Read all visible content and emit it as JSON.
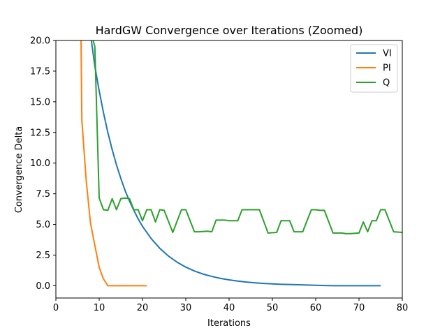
{
  "chart_data": {
    "type": "line",
    "title": "HardGW Convergence over Iterations (Zoomed)",
    "xlabel": "Iterations",
    "ylabel": "Convergence Delta",
    "xlim": [
      0,
      80
    ],
    "ylim": [
      -1,
      20
    ],
    "xticks": [
      0,
      10,
      20,
      30,
      40,
      50,
      60,
      70,
      80
    ],
    "yticks": [
      0.0,
      2.5,
      5.0,
      7.5,
      10.0,
      12.5,
      15.0,
      17.5,
      20.0
    ],
    "xtick_labels": [
      "0",
      "10",
      "20",
      "30",
      "40",
      "50",
      "60",
      "70",
      "80"
    ],
    "ytick_labels": [
      "0.0",
      "2.5",
      "5.0",
      "7.5",
      "10.0",
      "12.5",
      "15.0",
      "17.5",
      "20.0"
    ],
    "grid": false,
    "legend": "top-right",
    "series": [
      {
        "name": "VI",
        "color": "#1f77b4",
        "x": [
          8,
          9,
          10,
          11,
          12,
          13,
          14,
          15,
          16,
          17,
          18,
          19,
          20,
          22,
          24,
          26,
          28,
          30,
          32,
          34,
          36,
          38,
          40,
          42,
          44,
          46,
          48,
          50,
          52,
          54,
          56,
          58,
          60,
          62,
          64,
          66,
          68,
          70,
          72,
          75
        ],
        "y": [
          20.5,
          17.9,
          15.9,
          14.1,
          12.5,
          11.1,
          9.85,
          8.75,
          7.75,
          6.9,
          6.15,
          5.45,
          4.85,
          3.85,
          3.05,
          2.42,
          1.92,
          1.52,
          1.2,
          0.95,
          0.76,
          0.6,
          0.48,
          0.38,
          0.3,
          0.24,
          0.19,
          0.15,
          0.12,
          0.1,
          0.08,
          0.06,
          0.04,
          0.02,
          0.0,
          0.0,
          0.0,
          0.0,
          0.0,
          0.0
        ]
      },
      {
        "name": "PI",
        "color": "#ff7f0e",
        "x": [
          5.8,
          6,
          7,
          8,
          9,
          10,
          11,
          12,
          13,
          14,
          15,
          16,
          17,
          18,
          19,
          20,
          21
        ],
        "y": [
          20.5,
          13.5,
          8.6,
          5.1,
          3.3,
          1.5,
          0.55,
          0.0,
          0.0,
          0.0,
          0.0,
          0.0,
          0.0,
          0.0,
          0.0,
          0.0,
          0.0
        ]
      },
      {
        "name": "Q",
        "color": "#2ca02c",
        "x": [
          8.2,
          9,
          10,
          11,
          12,
          13,
          14,
          15,
          16,
          17,
          18,
          19,
          20,
          21,
          22,
          23,
          24,
          25,
          27,
          29,
          30,
          32,
          33,
          35,
          36,
          37,
          39,
          40,
          42,
          43,
          45,
          47,
          49,
          51,
          52,
          54,
          55,
          57,
          59,
          60,
          61,
          62,
          64,
          66,
          67,
          68,
          70,
          71,
          72,
          73,
          74,
          75,
          76,
          78,
          80
        ],
        "y": [
          20.5,
          19.5,
          7.15,
          6.2,
          6.15,
          7.1,
          6.2,
          7.1,
          7.15,
          7.1,
          6.2,
          6.2,
          5.3,
          6.2,
          6.2,
          5.2,
          6.2,
          6.15,
          4.35,
          6.2,
          6.2,
          4.4,
          4.4,
          4.45,
          4.4,
          5.35,
          5.35,
          5.3,
          5.3,
          6.2,
          6.2,
          6.2,
          4.3,
          4.35,
          5.3,
          5.3,
          4.4,
          4.4,
          6.2,
          6.2,
          6.15,
          6.15,
          4.3,
          4.3,
          4.25,
          4.25,
          4.3,
          5.2,
          4.4,
          5.3,
          5.3,
          6.2,
          6.2,
          4.4,
          4.35
        ]
      }
    ]
  }
}
